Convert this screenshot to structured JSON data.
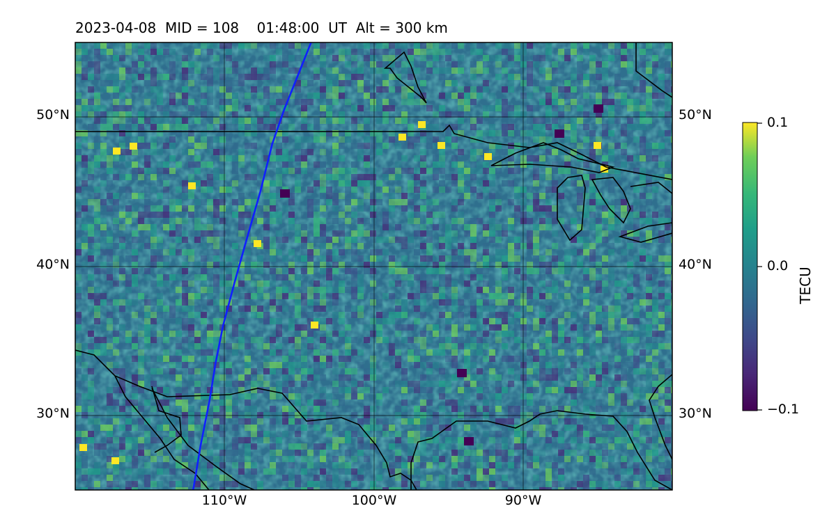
{
  "title": "2023-04-08  MID = 108    01:48:00  UT  Alt = 300 km",
  "map": {
    "lon_range": [
      -120,
      -80
    ],
    "lat_range": [
      25,
      55
    ],
    "lat_labels": [
      "50°N",
      "40°N",
      "30°N"
    ],
    "lon_labels": [
      "110°W",
      "100°W",
      "90°W"
    ],
    "gridlines": true,
    "colormap": "viridis",
    "coastline_color": "#000000",
    "track_color": "#1020ff"
  },
  "colorbar": {
    "label": "TECU",
    "max_label": "0.1",
    "mid_label": "0.0",
    "min_label": "−0.1",
    "vmin": -0.1,
    "vmax": 0.1
  },
  "track": {
    "name": "satellite ground track",
    "points": [
      [
        -112.1,
        25
      ],
      [
        -111.6,
        28
      ],
      [
        -111,
        31
      ],
      [
        -110.6,
        33.5
      ],
      [
        -110.1,
        36
      ],
      [
        -109.3,
        39
      ],
      [
        -108.6,
        41.5
      ],
      [
        -107.6,
        45
      ],
      [
        -106.8,
        48.2
      ],
      [
        -106,
        50.5
      ],
      [
        -105.2,
        52.5
      ],
      [
        -104.2,
        55
      ]
    ]
  }
}
